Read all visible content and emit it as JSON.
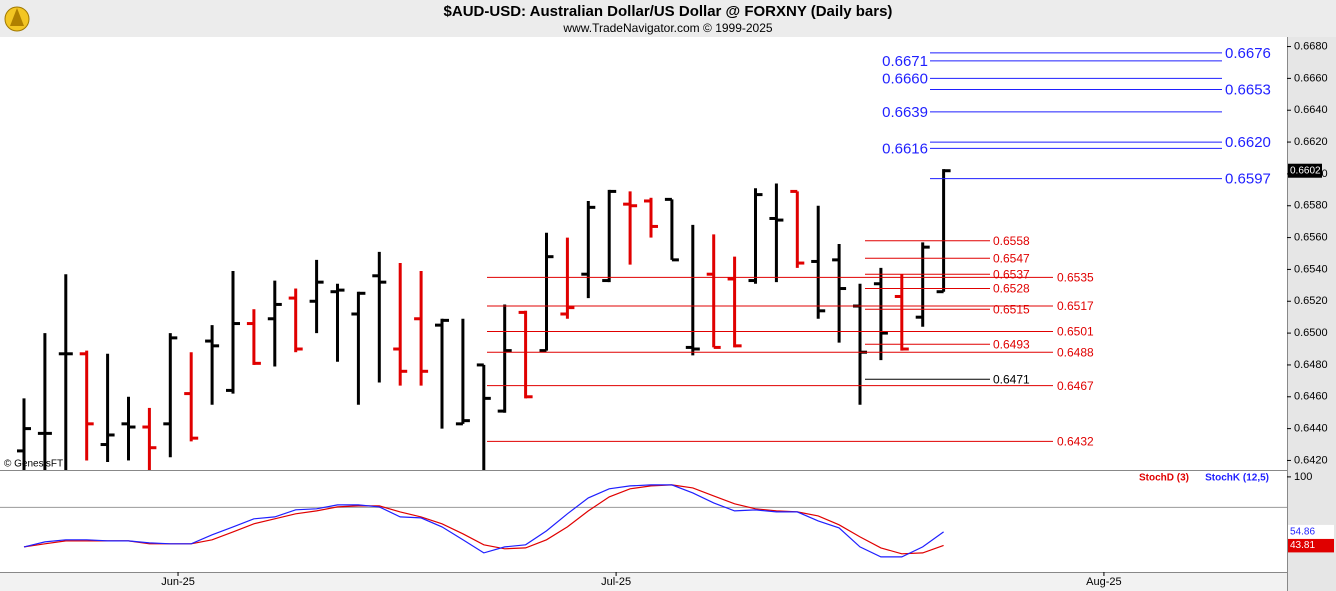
{
  "chart_data": [
    {
      "type": "ohlc",
      "title": "$AUD-USD:  Australian Dollar/US Dollar @ FORXNY  (Daily bars)",
      "subtitle": "www.TradeNavigator.com © 1999-2025",
      "credit": "© GenesisFT",
      "open": [
        0.6426,
        0.6437,
        0.6487,
        0.6487,
        0.643,
        0.6443,
        0.6441,
        0.6443,
        0.6462,
        0.6495,
        0.6464,
        0.6506,
        0.6509,
        0.6522,
        0.652,
        0.6526,
        0.6512,
        0.6536,
        0.649,
        0.6509,
        0.6505,
        0.6443,
        0.648,
        0.6451,
        0.6513,
        0.6489,
        0.6512,
        0.6537,
        0.6533,
        0.6581,
        0.6583,
        0.6584,
        0.6491,
        0.6537,
        0.6534,
        0.6533,
        0.6572,
        0.6589,
        0.6545,
        0.6546,
        0.6517,
        0.6531,
        0.6523,
        0.651,
        0.6526
      ],
      "high": [
        0.6459,
        0.65,
        0.6537,
        0.6489,
        0.6487,
        0.646,
        0.6453,
        0.65,
        0.6488,
        0.6505,
        0.6539,
        0.6515,
        0.6533,
        0.6528,
        0.6546,
        0.6531,
        0.6526,
        0.6551,
        0.6544,
        0.6539,
        0.6509,
        0.6509,
        0.648,
        0.6518,
        0.6514,
        0.6563,
        0.656,
        0.6583,
        0.659,
        0.6589,
        0.6585,
        0.6584,
        0.6568,
        0.6562,
        0.6548,
        0.6591,
        0.6594,
        0.6589,
        0.658,
        0.6556,
        0.6531,
        0.6541,
        0.6537,
        0.6557,
        0.6603
      ],
      "low": [
        0.6414,
        0.6414,
        0.6414,
        0.642,
        0.6419,
        0.642,
        0.6414,
        0.6422,
        0.6432,
        0.6455,
        0.6462,
        0.648,
        0.6479,
        0.6488,
        0.65,
        0.6482,
        0.6455,
        0.6469,
        0.6467,
        0.6467,
        0.644,
        0.6443,
        0.6414,
        0.645,
        0.6459,
        0.6489,
        0.6509,
        0.6522,
        0.6532,
        0.6543,
        0.656,
        0.6546,
        0.6486,
        0.6491,
        0.6491,
        0.6531,
        0.6532,
        0.6541,
        0.6509,
        0.6494,
        0.6455,
        0.6483,
        0.6489,
        0.6504,
        0.6526
      ],
      "close": [
        0.644,
        0.6437,
        0.6487,
        0.6443,
        0.6436,
        0.6441,
        0.6428,
        0.6497,
        0.6434,
        0.6492,
        0.6506,
        0.6481,
        0.6518,
        0.649,
        0.6532,
        0.6527,
        0.6525,
        0.6532,
        0.6476,
        0.6476,
        0.6508,
        0.6445,
        0.6459,
        0.6489,
        0.646,
        0.6548,
        0.6516,
        0.6579,
        0.6589,
        0.658,
        0.6567,
        0.6546,
        0.649,
        0.6491,
        0.6492,
        0.6587,
        0.6571,
        0.6544,
        0.6514,
        0.6528,
        0.6488,
        0.65,
        0.649,
        0.6554,
        0.6602
      ],
      "bar_colors": [
        "#000000",
        "#000000",
        "#000000",
        "#e00000",
        "#000000",
        "#000000",
        "#e00000",
        "#000000",
        "#e00000",
        "#000000",
        "#000000",
        "#e00000",
        "#000000",
        "#e00000",
        "#000000",
        "#000000",
        "#000000",
        "#000000",
        "#e00000",
        "#e00000",
        "#000000",
        "#000000",
        "#000000",
        "#000000",
        "#e00000",
        "#000000",
        "#e00000",
        "#000000",
        "#000000",
        "#e00000",
        "#e00000",
        "#000000",
        "#000000",
        "#e00000",
        "#e00000",
        "#000000",
        "#000000",
        "#e00000",
        "#000000",
        "#000000",
        "#000000",
        "#000000",
        "#e00000",
        "#000000",
        "#000000"
      ],
      "xlim": [
        -1.148,
        60.43
      ],
      "ylim": [
        0.6414,
        0.6686
      ],
      "yticks": [
        {
          "value": 0.668,
          "label": "0.6680"
        },
        {
          "value": 0.666,
          "label": "0.6660"
        },
        {
          "value": 0.664,
          "label": "0.6640"
        },
        {
          "value": 0.662,
          "label": "0.6620"
        },
        {
          "value": 0.66,
          "label": "0.6600"
        },
        {
          "value": 0.658,
          "label": "0.6580"
        },
        {
          "value": 0.656,
          "label": "0.6560"
        },
        {
          "value": 0.654,
          "label": "0.6540"
        },
        {
          "value": 0.652,
          "label": "0.6520"
        },
        {
          "value": 0.65,
          "label": "0.6500"
        },
        {
          "value": 0.648,
          "label": "0.6480"
        },
        {
          "value": 0.646,
          "label": "0.6460"
        },
        {
          "value": 0.644,
          "label": "0.6440"
        },
        {
          "value": 0.642,
          "label": "0.6420"
        }
      ],
      "levels": [
        {
          "value": 0.6676,
          "label": "0.6676",
          "style": "blue-right",
          "color": "#1f1fff"
        },
        {
          "value": 0.6671,
          "label": "0.6671",
          "style": "blue-left",
          "color": "#1f1fff"
        },
        {
          "value": 0.666,
          "label": "0.6660",
          "style": "blue-left",
          "color": "#1f1fff"
        },
        {
          "value": 0.6653,
          "label": "0.6653",
          "style": "blue-right",
          "color": "#1f1fff"
        },
        {
          "value": 0.6639,
          "label": "0.6639",
          "style": "blue-left",
          "color": "#1f1fff"
        },
        {
          "value": 0.662,
          "label": "0.6620",
          "style": "blue-right",
          "color": "#1f1fff"
        },
        {
          "value": 0.6616,
          "label": "0.6616",
          "style": "blue-left",
          "color": "#1f1fff"
        },
        {
          "value": 0.6597,
          "label": "0.6597",
          "style": "blue-right",
          "color": "#1f1fff"
        },
        {
          "value": 0.6558,
          "label": "0.6558",
          "style": "short",
          "color": "#e00000"
        },
        {
          "value": 0.6547,
          "label": "0.6547",
          "style": "short",
          "color": "#e00000"
        },
        {
          "value": 0.6537,
          "label": "0.6537",
          "style": "short",
          "color": "#e00000"
        },
        {
          "value": 0.6528,
          "label": "0.6528",
          "style": "short",
          "color": "#e00000"
        },
        {
          "value": 0.6515,
          "label": "0.6515",
          "style": "short",
          "color": "#e00000"
        },
        {
          "value": 0.6493,
          "label": "0.6493",
          "style": "short",
          "color": "#e00000"
        },
        {
          "value": 0.6471,
          "label": "0.6471",
          "style": "short",
          "color": "#000000"
        },
        {
          "value": 0.6535,
          "label": "0.6535",
          "style": "long",
          "color": "#e00000"
        },
        {
          "value": 0.6517,
          "label": "0.6517",
          "style": "long",
          "color": "#e00000"
        },
        {
          "value": 0.6501,
          "label": "0.6501",
          "style": "long",
          "color": "#e00000"
        },
        {
          "value": 0.6488,
          "label": "0.6488",
          "style": "long",
          "color": "#e00000"
        },
        {
          "value": 0.6467,
          "label": "0.6467",
          "style": "long",
          "color": "#e00000"
        },
        {
          "value": 0.6432,
          "label": "0.6432",
          "style": "long",
          "color": "#e00000"
        }
      ]
    },
    {
      "type": "line",
      "series": [
        {
          "name": "StochD (3)",
          "color": "#e00000",
          "values": [
            42.6,
            45.1,
            47.5,
            47.5,
            47.5,
            47.5,
            45.1,
            45.1,
            45.1,
            48.4,
            54.9,
            61.5,
            65.6,
            69.7,
            72.1,
            75.4,
            76.2,
            76.2,
            71.3,
            67.2,
            61.5,
            53.3,
            44.3,
            41.0,
            41.8,
            48.4,
            59.0,
            72.1,
            83.6,
            90.2,
            92.6,
            93.4,
            91.0,
            84.4,
            77.9,
            73.8,
            72.1,
            71.3,
            68.0,
            60.7,
            50.8,
            41.8,
            36.9,
            37.7,
            43.81
          ]
        },
        {
          "name": "StochK (12,5)",
          "color": "#1f1fff",
          "values": [
            42.6,
            46.7,
            48.4,
            48.4,
            47.5,
            47.5,
            45.9,
            45.1,
            45.1,
            52.5,
            59.0,
            65.6,
            67.2,
            73.0,
            73.8,
            77.0,
            77.0,
            75.4,
            67.2,
            66.4,
            59.0,
            48.4,
            37.7,
            42.6,
            44.3,
            55.7,
            69.7,
            82.8,
            90.2,
            92.6,
            93.4,
            93.4,
            86.9,
            78.7,
            72.1,
            72.9,
            71.3,
            71.3,
            63.9,
            58.2,
            42.6,
            34.4,
            34.4,
            42.6,
            54.86
          ]
        }
      ],
      "xlim": [
        -1.148,
        60.43
      ],
      "xticks": [
        {
          "value": 7.37,
          "label": "Jun-25"
        },
        {
          "value": 28.33,
          "label": "Jul-25"
        },
        {
          "value": 51.67,
          "label": "Aug-25"
        }
      ],
      "ylim": [
        22,
        104
      ],
      "yticks": [
        100
      ],
      "reference_line": 75
    }
  ]
}
